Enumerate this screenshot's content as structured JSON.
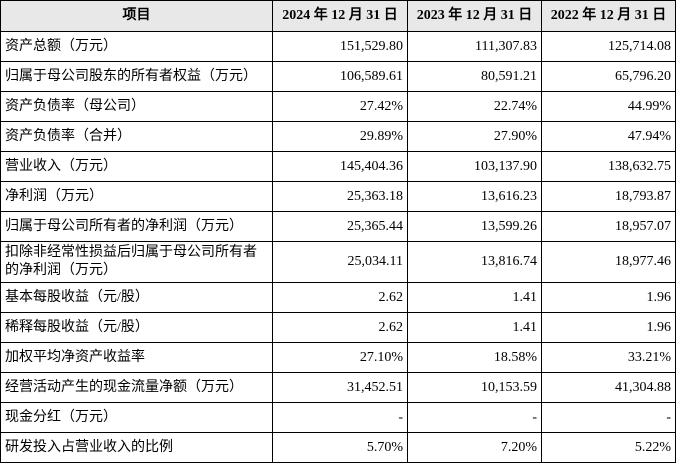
{
  "table": {
    "header": [
      "项目",
      "2024 年 12 月 31 日",
      "2023 年 12 月 31 日",
      "2022 年 12 月 31 日"
    ],
    "rows": [
      [
        "资产总额（万元）",
        "151,529.80",
        "111,307.83",
        "125,714.08"
      ],
      [
        "归属于母公司股东的所有者权益（万元）",
        "106,589.61",
        "80,591.21",
        "65,796.20"
      ],
      [
        "资产负债率（母公司）",
        "27.42%",
        "22.74%",
        "44.99%"
      ],
      [
        "资产负债率（合并）",
        "29.89%",
        "27.90%",
        "47.94%"
      ],
      [
        "营业收入（万元）",
        "145,404.36",
        "103,137.90",
        "138,632.75"
      ],
      [
        "净利润（万元）",
        "25,363.18",
        "13,616.23",
        "18,793.87"
      ],
      [
        "归属于母公司所有者的净利润（万元）",
        "25,365.44",
        "13,599.26",
        "18,957.07"
      ],
      [
        "扣除非经常性损益后归属于母公司所有者的净利润（万元）",
        "25,034.11",
        "13,816.74",
        "18,977.46"
      ],
      [
        "基本每股收益（元/股）",
        "2.62",
        "1.41",
        "1.96"
      ],
      [
        "稀释每股收益（元/股）",
        "2.62",
        "1.41",
        "1.96"
      ],
      [
        "加权平均净资产收益率",
        "27.10%",
        "18.58%",
        "33.21%"
      ],
      [
        "经营活动产生的现金流量净额（万元）",
        "31,452.51",
        "10,153.59",
        "41,304.88"
      ],
      [
        "现金分红（万元）",
        "-",
        "-",
        "-"
      ],
      [
        "研发投入占营业收入的比例",
        "5.70%",
        "7.20%",
        "5.22%"
      ]
    ]
  }
}
